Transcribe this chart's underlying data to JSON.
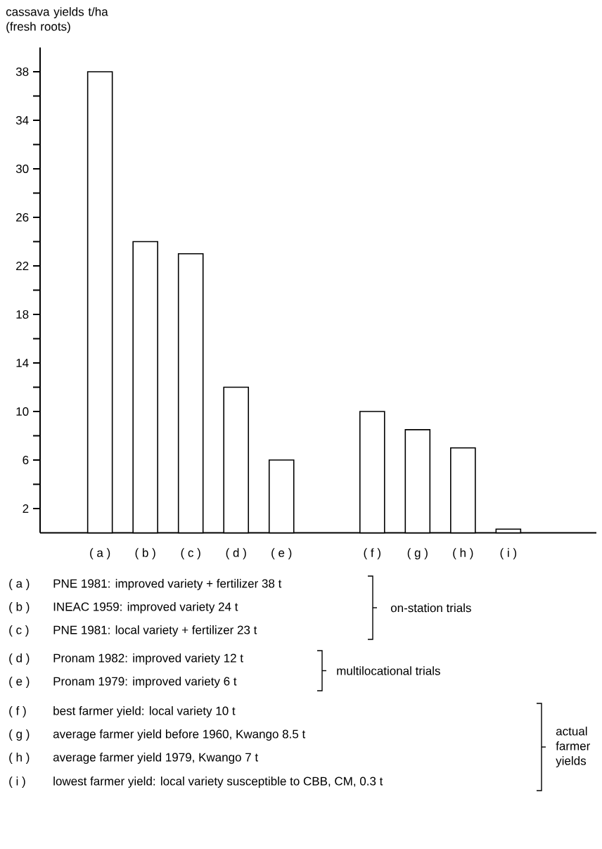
{
  "chart_data": {
    "type": "bar",
    "ylabel": "cassava yields t/ha (fresh roots)",
    "categories": [
      "( a )",
      "( b )",
      "( c )",
      "( d )",
      "( e )",
      null,
      "( f )",
      "( g )",
      "( h )",
      "( i )"
    ],
    "values": [
      38,
      24,
      23,
      12,
      6,
      null,
      10,
      8.5,
      7,
      0.3
    ],
    "color": "#ffffff",
    "ylim": [
      0,
      40
    ],
    "yticks": [
      2,
      6,
      10,
      14,
      18,
      22,
      26,
      30,
      34,
      38
    ],
    "annotations": [
      "PNE 1981: improved variety + fertilizer 38 t",
      "INEAC 1959: improved variety 24 t",
      "PNE 1981: local variety + fertilizer 23 t",
      "Pronam 1982: improved variety 12 t",
      "Pronam 1979: improved variety 6 t",
      "best farmer yield: local variety 10 t",
      "average farmer yield before 1960, Kwango 8.5 t",
      "average farmer yield 1979, Kwango 7 t",
      "lowest farmer yield: local variety susceptible to CBB, CM, 0.3 t",
      "on-station trials",
      "multilocational trials",
      "actual farmer yields"
    ]
  }
}
